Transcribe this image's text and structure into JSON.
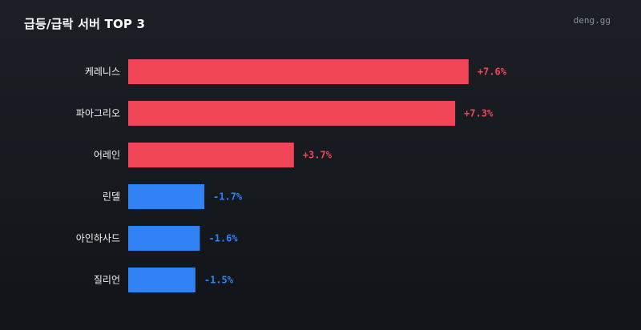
{
  "header": {
    "title": "급등/급락 서버 TOP 3",
    "brand": "deng.gg"
  },
  "colors": {
    "positive": "#f04658",
    "negative": "#3183f5",
    "label": "#f2f2f2"
  },
  "chart_data": {
    "type": "bar",
    "orientation": "horizontal",
    "title": "급등/급락 서버 TOP 3",
    "categories": [
      "케레니스",
      "파아그리오",
      "어레인",
      "린델",
      "아인하사드",
      "질리언"
    ],
    "values": [
      7.6,
      7.3,
      3.7,
      -1.7,
      -1.6,
      -1.5
    ],
    "value_labels": [
      "+7.6%",
      "+7.3%",
      "+3.7%",
      "-1.7%",
      "-1.6%",
      "-1.5%"
    ],
    "bar_length": "absolute value",
    "grid": false,
    "legend": "none"
  }
}
